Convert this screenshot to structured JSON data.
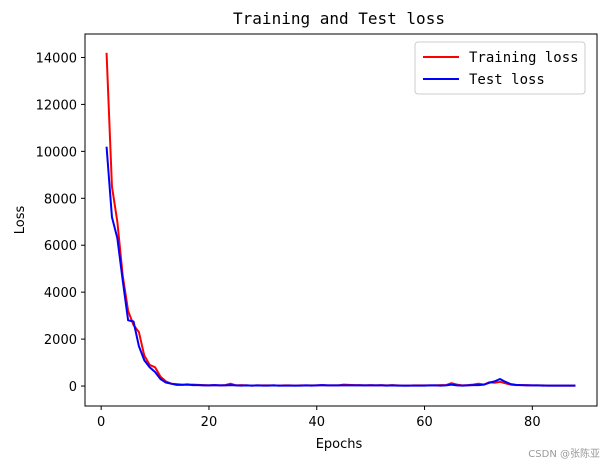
{
  "chart_data": {
    "type": "line",
    "title": "Training and Test loss",
    "xlabel": "Epochs",
    "ylabel": "Loss",
    "xlim": [
      -3,
      92
    ],
    "ylim": [
      -850,
      15000
    ],
    "xticks": [
      0,
      20,
      40,
      60,
      80
    ],
    "yticks": [
      0,
      2000,
      4000,
      6000,
      8000,
      10000,
      12000,
      14000
    ],
    "grid": false,
    "legend_position": "top-right",
    "x": [
      1,
      2,
      3,
      4,
      5,
      6,
      7,
      8,
      9,
      10,
      11,
      12,
      13,
      14,
      15,
      16,
      17,
      18,
      19,
      20,
      21,
      22,
      23,
      24,
      25,
      26,
      27,
      28,
      29,
      30,
      31,
      32,
      33,
      34,
      35,
      36,
      37,
      38,
      39,
      40,
      41,
      42,
      43,
      44,
      45,
      46,
      47,
      48,
      49,
      50,
      51,
      52,
      53,
      54,
      55,
      56,
      57,
      58,
      59,
      60,
      61,
      62,
      63,
      64,
      65,
      66,
      67,
      68,
      69,
      70,
      71,
      72,
      73,
      74,
      75,
      76,
      77,
      78,
      79,
      80,
      81,
      82,
      83,
      84,
      85,
      86,
      87,
      88
    ],
    "series": [
      {
        "name": "Training loss",
        "color": "#ff0000",
        "values": [
          14200,
          8500,
          7000,
          4700,
          3200,
          2600,
          2300,
          1300,
          900,
          800,
          400,
          200,
          100,
          80,
          60,
          50,
          60,
          50,
          40,
          30,
          40,
          30,
          40,
          100,
          30,
          40,
          30,
          20,
          30,
          30,
          30,
          30,
          20,
          30,
          30,
          20,
          30,
          30,
          30,
          30,
          40,
          30,
          30,
          30,
          60,
          50,
          40,
          40,
          30,
          40,
          30,
          40,
          30,
          40,
          30,
          20,
          20,
          30,
          30,
          30,
          30,
          30,
          40,
          40,
          120,
          60,
          30,
          40,
          60,
          100,
          60,
          160,
          140,
          180,
          120,
          60,
          40,
          40,
          40,
          30,
          30,
          30,
          20,
          20,
          20,
          20,
          20,
          20
        ]
      },
      {
        "name": "Test loss",
        "color": "#0000ff",
        "values": [
          10200,
          7200,
          6300,
          4500,
          2800,
          2750,
          1700,
          1100,
          800,
          600,
          300,
          150,
          100,
          50,
          50,
          70,
          40,
          40,
          30,
          30,
          40,
          30,
          30,
          40,
          30,
          20,
          30,
          20,
          30,
          20,
          20,
          30,
          20,
          20,
          20,
          20,
          20,
          30,
          20,
          30,
          40,
          30,
          30,
          30,
          30,
          30,
          30,
          30,
          30,
          30,
          30,
          30,
          20,
          30,
          20,
          20,
          20,
          20,
          20,
          20,
          30,
          30,
          20,
          30,
          60,
          30,
          20,
          30,
          40,
          40,
          60,
          140,
          200,
          300,
          180,
          80,
          50,
          40,
          30,
          30,
          30,
          20,
          20,
          20,
          20,
          20,
          20,
          20
        ]
      }
    ]
  },
  "watermark": "CSDN @张陈亚"
}
